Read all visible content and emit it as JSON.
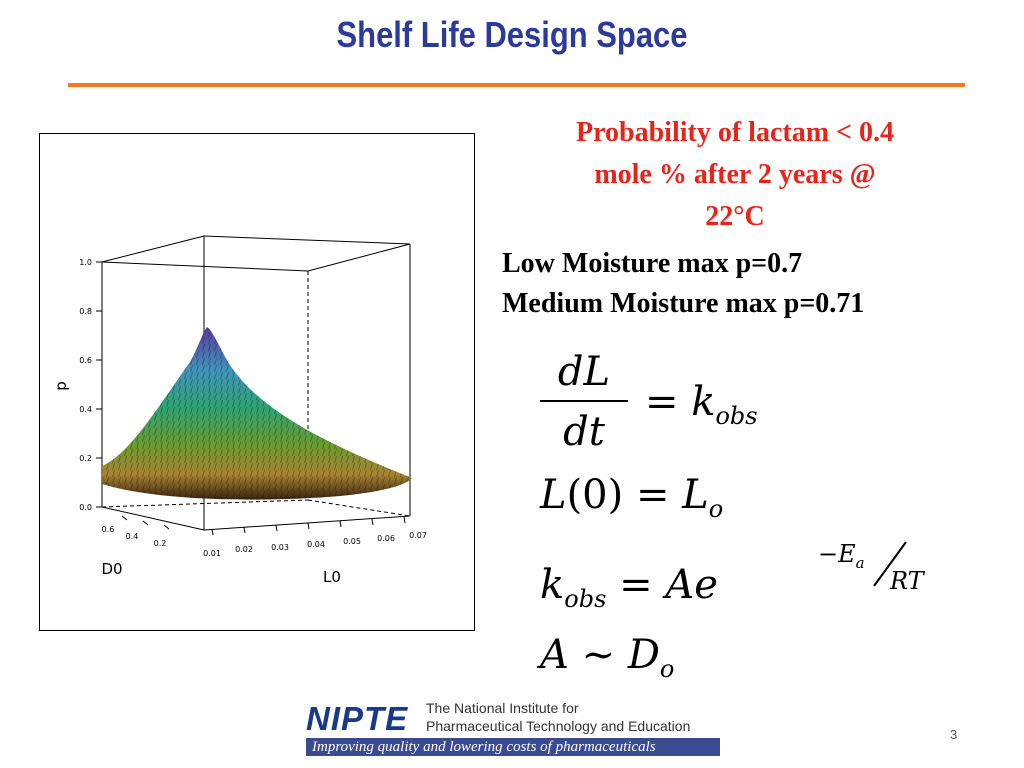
{
  "slide": {
    "title": "Shelf Life Design Space",
    "page_number": "3",
    "accent_color": "#f47a20",
    "title_color": "#2b3a9b"
  },
  "plot": {
    "z_label": "p",
    "x_label": "D0",
    "y_label": "L0",
    "z_ticks": [
      "1.0",
      "0.8",
      "0.6",
      "0.4",
      "0.2",
      "0.0"
    ],
    "d0_ticks": [
      "0.6",
      "0.4",
      "0.2"
    ],
    "l0_ticks": [
      "0.01",
      "0.02",
      "0.03",
      "0.04",
      "0.05",
      "0.06",
      "0.07"
    ]
  },
  "right": {
    "prob_title_lines": [
      "Probability of lactam < 0.4",
      "mole % after 2 years @",
      "22°C"
    ],
    "prob_title_color": "#e8231a",
    "low_moisture": "Low Moisture max p=0.7",
    "medium_moisture": "Medium Moisture max p=0.71"
  },
  "equations": {
    "dL": "dL",
    "dt": "dt",
    "eq1_rhs": "= k",
    "obs": "obs",
    "eq2_a": "L",
    "eq2_arg": "(0)",
    "eq2_b": "= L",
    "sub_o": "o",
    "eq3_k": "k",
    "eq3_rhs": "= Ae",
    "exp_num": "−E",
    "exp_a": "a",
    "exp_den": "RT",
    "eq4_a": "A ~ D"
  },
  "footer": {
    "logo": "NIPTE",
    "institute_line1": "The National Institute for",
    "institute_line2": "Pharmaceutical Technology and Education",
    "tagline": "Improving quality and lowering costs of pharmaceuticals"
  }
}
